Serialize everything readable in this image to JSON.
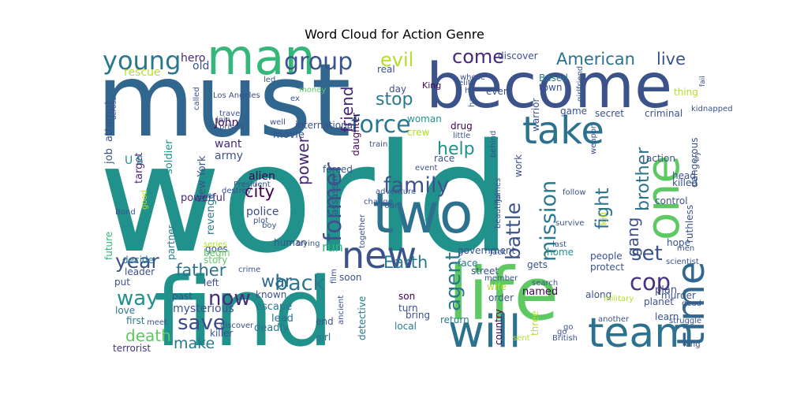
{
  "chart_data": {
    "type": "wordcloud",
    "title": "Word Cloud for Action Genre",
    "words": [
      {
        "text": "world",
        "color": "#21918c"
      },
      {
        "text": "must",
        "color": "#31668e"
      },
      {
        "text": "find",
        "color": "#21918c"
      },
      {
        "text": "become",
        "color": "#3b528b"
      },
      {
        "text": "life",
        "color": "#5ec962"
      },
      {
        "text": "two",
        "color": "#2c728e"
      },
      {
        "text": "man",
        "color": "#35b779"
      },
      {
        "text": "one",
        "color": "#5ec962"
      },
      {
        "text": "team",
        "color": "#2c728e"
      },
      {
        "text": "will",
        "color": "#2c728e"
      },
      {
        "text": "new",
        "color": "#3b528b"
      },
      {
        "text": "take",
        "color": "#2c728e"
      },
      {
        "text": "time",
        "color": "#31668e"
      },
      {
        "text": "young",
        "color": "#2a788e"
      },
      {
        "text": "group",
        "color": "#3b528b"
      },
      {
        "text": "former",
        "color": "#3b528b"
      },
      {
        "text": "force",
        "color": "#2a788e"
      },
      {
        "text": "family",
        "color": "#3b528b"
      },
      {
        "text": "mission",
        "color": "#2a788e"
      },
      {
        "text": "Earth",
        "color": "#2a788e"
      },
      {
        "text": "back",
        "color": "#2a788e"
      },
      {
        "text": "save",
        "color": "#3e4a89"
      },
      {
        "text": "year",
        "color": "#3b528b"
      },
      {
        "text": "way",
        "color": "#21918c"
      },
      {
        "text": "now",
        "color": "#472c7a"
      },
      {
        "text": "father",
        "color": "#2c728e"
      },
      {
        "text": "cop",
        "color": "#46337f"
      },
      {
        "text": "set",
        "color": "#3b528b"
      },
      {
        "text": "city",
        "color": "#440154"
      },
      {
        "text": "agent",
        "color": "#2a788e"
      },
      {
        "text": "help",
        "color": "#21918c"
      },
      {
        "text": "battle",
        "color": "#3b528b"
      },
      {
        "text": "fight",
        "color": "#2c728e"
      },
      {
        "text": "death",
        "color": "#5ec962"
      },
      {
        "text": "friend",
        "color": "#482475"
      },
      {
        "text": "power",
        "color": "#482878"
      },
      {
        "text": "evil",
        "color": "#b5de2b"
      },
      {
        "text": "come",
        "color": "#482878"
      },
      {
        "text": "American",
        "color": "#2c728e"
      },
      {
        "text": "live",
        "color": "#3b528b"
      },
      {
        "text": "stop",
        "color": "#2a788e"
      },
      {
        "text": "war",
        "color": "#31688e"
      },
      {
        "text": "make",
        "color": "#2a788e"
      },
      {
        "text": "brother",
        "color": "#2c728e"
      },
      {
        "text": "gang",
        "color": "#3b528b"
      },
      {
        "text": "police",
        "color": "#3e4a89"
      },
      {
        "text": "alien",
        "color": "#440154"
      },
      {
        "text": "run",
        "color": "#35b779"
      },
      {
        "text": "hero",
        "color": "#482878"
      },
      {
        "text": "old",
        "color": "#3b528b"
      },
      {
        "text": "rescue",
        "color": "#b5de2b"
      },
      {
        "text": "John",
        "color": "#440154"
      },
      {
        "text": "want",
        "color": "#482878"
      },
      {
        "text": "army",
        "color": "#3b528b"
      },
      {
        "text": "job",
        "color": "#3b528b"
      },
      {
        "text": "attempt",
        "color": "#3b528b"
      },
      {
        "text": "target",
        "color": "#482878"
      },
      {
        "text": "soldier",
        "color": "#21918c"
      },
      {
        "text": "New York",
        "color": "#3b528b"
      },
      {
        "text": "U S",
        "color": "#21918c"
      },
      {
        "text": "powerful",
        "color": "#482878"
      },
      {
        "text": "revenge",
        "color": "#2a788e"
      },
      {
        "text": "goes",
        "color": "#3b528b"
      },
      {
        "text": "future",
        "color": "#35b779"
      },
      {
        "text": "partner",
        "color": "#2a788e"
      },
      {
        "text": "story",
        "color": "#5ec962"
      },
      {
        "text": "begin",
        "color": "#5ec962"
      },
      {
        "text": "decide",
        "color": "#2a788e"
      },
      {
        "text": "leader",
        "color": "#3b528b"
      },
      {
        "text": "put",
        "color": "#3b528b"
      },
      {
        "text": "love",
        "color": "#2a788e"
      },
      {
        "text": "first",
        "color": "#2a788e"
      },
      {
        "text": "terrorist",
        "color": "#46337f"
      },
      {
        "text": "mysterious",
        "color": "#3b528b"
      },
      {
        "text": "past",
        "color": "#3b528b"
      },
      {
        "text": "left",
        "color": "#3b528b"
      },
      {
        "text": "known",
        "color": "#3b528b"
      },
      {
        "text": "escape",
        "color": "#2a788e"
      },
      {
        "text": "lead",
        "color": "#2c728e"
      },
      {
        "text": "deadly",
        "color": "#2a788e"
      },
      {
        "text": "killer",
        "color": "#3b528b"
      },
      {
        "text": "movie",
        "color": "#3b528b"
      },
      {
        "text": "day",
        "color": "#3b528b"
      },
      {
        "text": "real",
        "color": "#3b528b"
      },
      {
        "text": "money",
        "color": "#5ec962"
      },
      {
        "text": "led",
        "color": "#3b528b"
      },
      {
        "text": "King",
        "color": "#440154"
      },
      {
        "text": "woman",
        "color": "#21918c"
      },
      {
        "text": "daughter",
        "color": "#440154"
      },
      {
        "text": "crew",
        "color": "#b5de2b"
      },
      {
        "text": "drug",
        "color": "#440154"
      },
      {
        "text": "race",
        "color": "#3b528b"
      },
      {
        "text": "assassin",
        "color": "#3b528b"
      },
      {
        "text": "forced",
        "color": "#3b528b"
      },
      {
        "text": "human",
        "color": "#3b528b"
      },
      {
        "text": "end",
        "color": "#3b528b"
      },
      {
        "text": "detective",
        "color": "#2a788e"
      },
      {
        "text": "girl",
        "color": "#2a788e"
      },
      {
        "text": "son",
        "color": "#440154"
      },
      {
        "text": "turn",
        "color": "#3b528b"
      },
      {
        "text": "bring",
        "color": "#3b528b"
      },
      {
        "text": "local",
        "color": "#2a788e"
      },
      {
        "text": "soon",
        "color": "#3b528b"
      },
      {
        "text": "government",
        "color": "#3b528b"
      },
      {
        "text": "face",
        "color": "#2a788e"
      },
      {
        "text": "street",
        "color": "#3b528b"
      },
      {
        "text": "wife",
        "color": "#b5de2b"
      },
      {
        "text": "order",
        "color": "#3b528b"
      },
      {
        "text": "return",
        "color": "#2a788e"
      },
      {
        "text": "country",
        "color": "#440154"
      },
      {
        "text": "three",
        "color": "#b5de2b"
      },
      {
        "text": "named",
        "color": "#440154"
      },
      {
        "text": "gets",
        "color": "#3b528b"
      },
      {
        "text": "protect",
        "color": "#3b528b"
      },
      {
        "text": "home",
        "color": "#21918c"
      },
      {
        "text": "people",
        "color": "#3b528b"
      },
      {
        "text": "along",
        "color": "#3b528b"
      },
      {
        "text": "plan",
        "color": "#3b528b"
      },
      {
        "text": "planet",
        "color": "#3b528b"
      },
      {
        "text": "learn",
        "color": "#3b528b"
      },
      {
        "text": "murder",
        "color": "#3b528b"
      },
      {
        "text": "hope",
        "color": "#3b528b"
      },
      {
        "text": "ruthless",
        "color": "#3b528b"
      },
      {
        "text": "control",
        "color": "#3b528b"
      },
      {
        "text": "killed",
        "color": "#3b528b"
      },
      {
        "text": "head",
        "color": "#3b528b"
      },
      {
        "text": "action",
        "color": "#3b528b"
      },
      {
        "text": "dangerous",
        "color": "#3b528b"
      },
      {
        "text": "criminal",
        "color": "#3b528b"
      },
      {
        "text": "secret",
        "color": "#3b528b"
      },
      {
        "text": "warrior",
        "color": "#3b528b"
      },
      {
        "text": "town",
        "color": "#3b528b"
      },
      {
        "text": "discover",
        "color": "#3b528b"
      },
      {
        "text": "work",
        "color": "#3b528b"
      },
      {
        "text": "game",
        "color": "#3b528b"
      },
      {
        "text": "even",
        "color": "#3b528b"
      },
      {
        "text": "Based",
        "color": "#2a788e"
      },
      {
        "text": "thing",
        "color": "#b5de2b"
      },
      {
        "text": "men",
        "color": "#3b528b"
      },
      {
        "text": "kill",
        "color": "#b5de2b"
      },
      {
        "text": "beautiful",
        "color": "#3b528b"
      },
      {
        "text": "behind",
        "color": "#3b528b"
      },
      {
        "text": "together",
        "color": "#3b528b"
      },
      {
        "text": "adventure",
        "color": "#3b528b"
      },
      {
        "text": "film",
        "color": "#3b528b"
      },
      {
        "text": "plot",
        "color": "#3b528b"
      },
      {
        "text": "series",
        "color": "#b5de2b"
      },
      {
        "text": "go",
        "color": "#3b528b"
      },
      {
        "text": "go",
        "color": "#3b528b"
      },
      {
        "text": "struggle",
        "color": "#3b528b"
      },
      {
        "text": "dead",
        "color": "#3b528b"
      },
      {
        "text": "military",
        "color": "#b5de2b"
      },
      {
        "text": "another",
        "color": "#3b528b"
      },
      {
        "text": "British",
        "color": "#3b528b"
      },
      {
        "text": "sent",
        "color": "#b5de2b"
      },
      {
        "text": "long",
        "color": "#3b528b"
      },
      {
        "text": "scientist",
        "color": "#3b528b"
      },
      {
        "text": "search",
        "color": "#3b528b"
      },
      {
        "text": "member",
        "color": "#3b528b"
      },
      {
        "text": "last",
        "color": "#3b528b"
      },
      {
        "text": "Jack",
        "color": "#3b528b"
      },
      {
        "text": "survive",
        "color": "#3b528b"
      },
      {
        "text": "crime",
        "color": "#3b528b"
      },
      {
        "text": "boy",
        "color": "#3b528b"
      },
      {
        "text": "trying",
        "color": "#3b528b"
      },
      {
        "text": "Four",
        "color": "#3b528b"
      },
      {
        "text": "change",
        "color": "#3b528b"
      },
      {
        "text": "event",
        "color": "#3b528b"
      },
      {
        "text": "train",
        "color": "#3b528b"
      },
      {
        "text": "ancient",
        "color": "#3b528b"
      },
      {
        "text": "discover",
        "color": "#3b528b"
      },
      {
        "text": "meet",
        "color": "#3b528b"
      },
      {
        "text": "good",
        "color": "#b5de2b"
      },
      {
        "text": "President",
        "color": "#3b528b"
      },
      {
        "text": "Bond",
        "color": "#3b528b"
      },
      {
        "text": "across",
        "color": "#3b528b"
      },
      {
        "text": "Los Angeles",
        "color": "#3b528b"
      },
      {
        "text": "called",
        "color": "#3b528b"
      },
      {
        "text": "travel",
        "color": "#3b528b"
      },
      {
        "text": "join",
        "color": "#3b528b"
      },
      {
        "text": "prison",
        "color": "#3b528b"
      },
      {
        "text": "well",
        "color": "#3b528b"
      },
      {
        "text": "destroy",
        "color": "#3b528b"
      },
      {
        "text": "ex",
        "color": "#3b528b"
      },
      {
        "text": "whose",
        "color": "#3b528b"
      },
      {
        "text": "hit",
        "color": "#3b528b"
      },
      {
        "text": "elite",
        "color": "#3b528b"
      },
      {
        "text": "hand",
        "color": "#3b528b"
      },
      {
        "text": "girlfriend",
        "color": "#3b528b"
      },
      {
        "text": "weapon",
        "color": "#3b528b"
      },
      {
        "text": "little",
        "color": "#3b528b"
      },
      {
        "text": "James",
        "color": "#3b528b"
      },
      {
        "text": "follow",
        "color": "#3b528b"
      },
      {
        "text": "fail",
        "color": "#3b528b"
      },
      {
        "text": "kidnapped",
        "color": "#3b528b"
      },
      {
        "text": "try",
        "color": "#3b528b"
      },
      {
        "text": "international",
        "color": "#3b528b"
      },
      {
        "text": "S",
        "color": "#3b528b"
      }
    ]
  }
}
